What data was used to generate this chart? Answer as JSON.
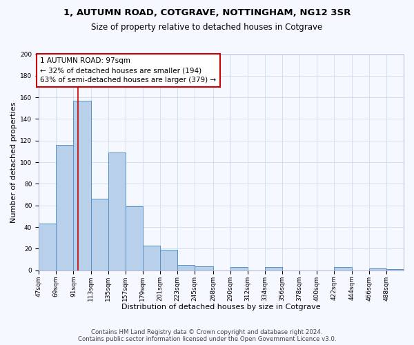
{
  "title": "1, AUTUMN ROAD, COTGRAVE, NOTTINGHAM, NG12 3SR",
  "subtitle": "Size of property relative to detached houses in Cotgrave",
  "xlabel": "Distribution of detached houses by size in Cotgrave",
  "ylabel": "Number of detached properties",
  "bins": [
    "47sqm",
    "69sqm",
    "91sqm",
    "113sqm",
    "135sqm",
    "157sqm",
    "179sqm",
    "201sqm",
    "223sqm",
    "245sqm",
    "268sqm",
    "290sqm",
    "312sqm",
    "334sqm",
    "356sqm",
    "378sqm",
    "400sqm",
    "422sqm",
    "444sqm",
    "466sqm",
    "488sqm"
  ],
  "bin_edges": [
    47,
    69,
    91,
    113,
    135,
    157,
    179,
    201,
    223,
    245,
    268,
    290,
    312,
    334,
    356,
    378,
    400,
    422,
    444,
    466,
    488,
    510
  ],
  "heights": [
    43,
    116,
    157,
    66,
    109,
    59,
    23,
    19,
    5,
    4,
    0,
    3,
    0,
    3,
    0,
    0,
    0,
    3,
    0,
    2,
    1
  ],
  "bar_color": "#b8d0ea",
  "bar_edge_color": "#5590c8",
  "bar_edge_width": 0.7,
  "vline_x": 97,
  "vline_color": "#cc0000",
  "annotation_text": "1 AUTUMN ROAD: 97sqm\n← 32% of detached houses are smaller (194)\n63% of semi-detached houses are larger (379) →",
  "annotation_box_edge_color": "#cc0000",
  "annotation_box_face_color": "#ffffff",
  "ylim": [
    0,
    200
  ],
  "yticks": [
    0,
    20,
    40,
    60,
    80,
    100,
    120,
    140,
    160,
    180,
    200
  ],
  "bg_color": "#f5f8ff",
  "grid_color": "#ccddef",
  "footer_text": "Contains HM Land Registry data © Crown copyright and database right 2024.\nContains public sector information licensed under the Open Government Licence v3.0.",
  "title_fontsize": 9.5,
  "subtitle_fontsize": 8.5,
  "xlabel_fontsize": 8,
  "ylabel_fontsize": 8,
  "tick_fontsize": 6.5,
  "annotation_fontsize": 7.5,
  "footer_fontsize": 6.2
}
